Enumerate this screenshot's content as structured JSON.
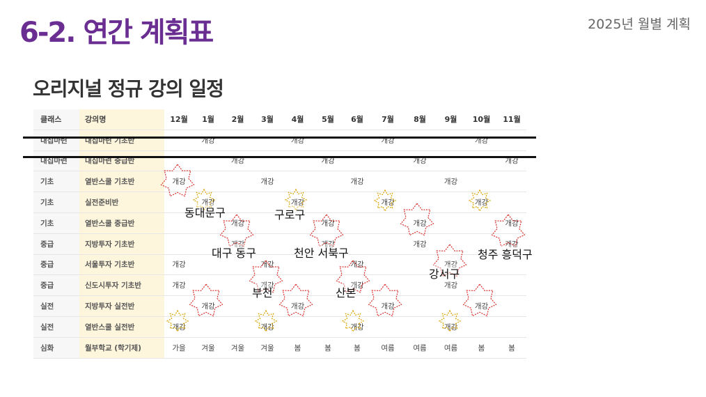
{
  "slide": {
    "title": "6-2. 연간 계획표",
    "subtitle": "2025년 월별 계획"
  },
  "section_title": "오리지널 정규 강의 일정",
  "table": {
    "headers": [
      "클래스",
      "강의명",
      "12월",
      "1월",
      "2월",
      "3월",
      "4월",
      "5월",
      "6월",
      "7월",
      "8월",
      "9월",
      "10월",
      "11월"
    ],
    "rows": [
      [
        "내집마련",
        "내집마련 기초반",
        "",
        "개강",
        "",
        "",
        "개강",
        "",
        "",
        "개강",
        "",
        "",
        "개강",
        ""
      ],
      [
        "내집마련",
        "내집마련 중급반",
        "",
        "",
        "개강",
        "",
        "",
        "개강",
        "",
        "",
        "개강",
        "",
        "",
        "개강"
      ],
      [
        "기초",
        "열반스쿨 기초반",
        "개강",
        "",
        "",
        "개강",
        "",
        "",
        "개강",
        "",
        "",
        "개강",
        "",
        ""
      ],
      [
        "기초",
        "실전준비반",
        "",
        "개강",
        "",
        "",
        "개강",
        "",
        "",
        "개강",
        "",
        "",
        "개강",
        ""
      ],
      [
        "기초",
        "열반스쿨 중급반",
        "",
        "",
        "개강",
        "",
        "",
        "개강",
        "",
        "",
        "개강",
        "",
        "",
        "개강"
      ],
      [
        "중급",
        "지방투자 기초반",
        "",
        "",
        "개강",
        "",
        "",
        "개강",
        "",
        "",
        "개강",
        "",
        "",
        "개강"
      ],
      [
        "중급",
        "서울투자 기초반",
        "개강",
        "",
        "",
        "개강",
        "",
        "",
        "개강",
        "",
        "",
        "개강",
        "",
        ""
      ],
      [
        "중급",
        "신도시투자 기초반",
        "개강",
        "",
        "",
        "개강",
        "",
        "",
        "개강",
        "",
        "",
        "개강",
        "",
        ""
      ],
      [
        "실전",
        "지방투자 실전반",
        "",
        "개강",
        "",
        "",
        "개강",
        "",
        "",
        "개강",
        "",
        "",
        "개강",
        ""
      ],
      [
        "실전",
        "열반스쿨 실전반",
        "개강",
        "",
        "",
        "개강",
        "",
        "",
        "개강",
        "",
        "",
        "개강",
        "",
        ""
      ],
      [
        "심화",
        "월부학교 (학기제)",
        "가을",
        "겨울",
        "겨울",
        "겨울",
        "봄",
        "봄",
        "봄",
        "여름",
        "여름",
        "여름",
        "봄",
        "봄"
      ]
    ]
  },
  "highlight_colors": {
    "red_star": "#d9302c",
    "gold_star": "#d9a400"
  },
  "area_labels": [
    "동대문구",
    "구로구",
    "대구 동구",
    "천안 서북구",
    "청주 흥덕구",
    "강서구",
    "부천",
    "산본"
  ]
}
